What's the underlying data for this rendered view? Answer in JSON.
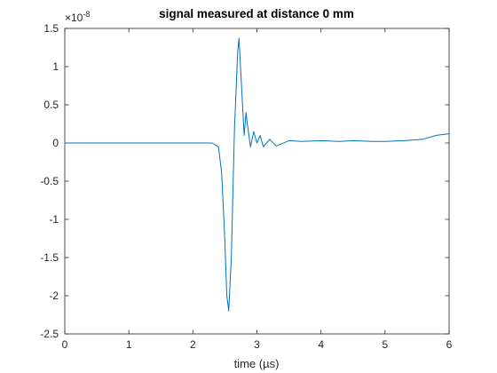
{
  "chart_data": {
    "type": "line",
    "title": "signal measured at distance 0 mm",
    "xlabel": "time (µs)",
    "ylabel": "",
    "y_multiplier_base": "×10",
    "y_multiplier_exponent": "-8",
    "xlim": [
      0,
      6
    ],
    "ylim": [
      -2.5,
      1.5
    ],
    "xticks": [
      0,
      1,
      2,
      3,
      4,
      5,
      6
    ],
    "xtick_labels": [
      "0",
      "1",
      "2",
      "3",
      "4",
      "5",
      "6"
    ],
    "yticks": [
      1.5,
      1,
      0.5,
      0,
      -0.5,
      -1,
      -1.5,
      -2,
      -2.5
    ],
    "ytick_labels": [
      "1.5",
      "1",
      "0.5",
      "0",
      "-0.5",
      "-1",
      "-1.5",
      "-2",
      "-2.5"
    ],
    "grid": false,
    "series_color": "#0072BD",
    "series": [
      {
        "x": [
          0,
          1,
          2,
          2.3,
          2.4,
          2.45,
          2.5,
          2.53,
          2.56,
          2.6,
          2.65,
          2.7,
          2.72,
          2.75,
          2.8,
          2.83,
          2.85,
          2.9,
          2.95,
          3.0,
          3.05,
          3.1,
          3.2,
          3.3,
          3.5,
          3.7,
          4.0,
          4.3,
          4.5,
          4.8,
          5.0,
          5.3,
          5.6,
          5.8,
          6.0
        ],
        "y": [
          0,
          0,
          0,
          0,
          -0.05,
          -0.4,
          -1.3,
          -2.0,
          -2.2,
          -1.5,
          0.2,
          1.2,
          1.37,
          0.9,
          0.1,
          0.4,
          0.25,
          -0.05,
          0.15,
          0.0,
          0.1,
          -0.05,
          0.05,
          -0.04,
          0.03,
          0.02,
          0.03,
          0.02,
          0.03,
          0.02,
          0.02,
          0.03,
          0.05,
          0.1,
          0.12
        ]
      }
    ]
  }
}
